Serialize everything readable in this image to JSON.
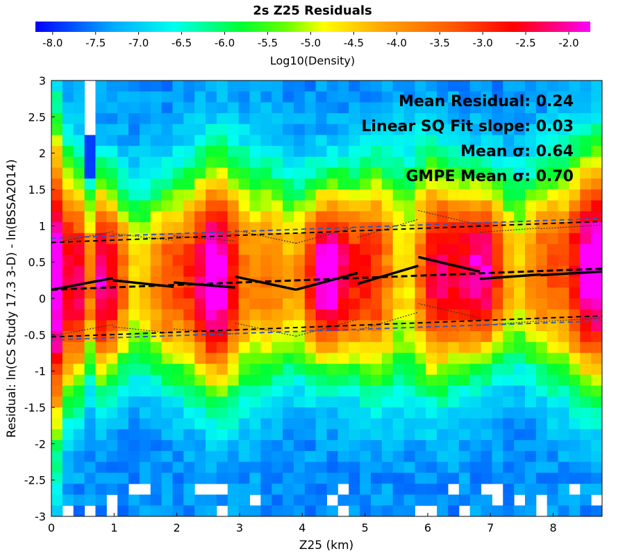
{
  "chart_data": {
    "type": "heatmap",
    "title": "2s Z25 Residuals",
    "colorbar": {
      "label": "Log10(Density)",
      "range": [
        -8.2,
        -1.75
      ],
      "ticks": [
        "-8.0",
        "-7.5",
        "-7.0",
        "-6.5",
        "-6.0",
        "-5.5",
        "-5.0",
        "-4.5",
        "-4.0",
        "-3.5",
        "-3.0",
        "-2.5",
        "-2.0"
      ],
      "palette": [
        "#0000ff",
        "#00e5ff",
        "#00ff00",
        "#ffff00",
        "#ff8c00",
        "#ff0000",
        "#ff00ff"
      ]
    },
    "xlabel": "Z25 (km)",
    "ylabel": "Residual: ln(CS Study 17.3 3-D) - ln(BSSA2014)",
    "xlim": [
      0,
      8.78
    ],
    "ylim": [
      -3,
      3
    ],
    "xticks": [
      "0",
      "1",
      "2",
      "3",
      "4",
      "5",
      "6",
      "7",
      "8"
    ],
    "yticks": [
      "-3",
      "-2.5",
      "-2",
      "-1.5",
      "-1",
      "-0.5",
      "0",
      "0.5",
      "1",
      "1.5",
      "2",
      "2.5",
      "3"
    ],
    "annotations": [
      "Mean Residual: 0.24",
      "Linear SQ Fit slope: 0.03",
      "Mean σ: 0.64",
      "GMPE Mean σ: 0.70"
    ],
    "series": [
      {
        "style": "binned-mean",
        "segments": [
          {
            "x": [
              0.0,
              0.98
            ],
            "y": [
              0.12,
              0.28
            ]
          },
          {
            "x": [
              0.98,
              1.95
            ],
            "y": [
              0.25,
              0.16
            ]
          },
          {
            "x": [
              1.95,
              2.93
            ],
            "y": [
              0.22,
              0.15
            ]
          },
          {
            "x": [
              2.93,
              3.9
            ],
            "y": [
              0.3,
              0.12
            ]
          },
          {
            "x": [
              3.9,
              4.88
            ],
            "y": [
              0.12,
              0.35
            ]
          },
          {
            "x": [
              4.88,
              5.85
            ],
            "y": [
              0.2,
              0.45
            ]
          },
          {
            "x": [
              5.85,
              6.83
            ],
            "y": [
              0.57,
              0.37
            ]
          },
          {
            "x": [
              6.83,
              7.8
            ],
            "y": [
              0.27,
              0.33
            ]
          },
          {
            "x": [
              7.8,
              8.78
            ],
            "y": [
              0.32,
              0.37
            ]
          }
        ]
      },
      {
        "style": "linear-fit",
        "x": [
          0,
          8.78
        ],
        "y": [
          0.12,
          0.41
        ]
      },
      {
        "style": "linear-fit-upper",
        "x": [
          0,
          8.78
        ],
        "y": [
          0.77,
          1.06
        ]
      },
      {
        "style": "linear-fit-lower",
        "x": [
          0,
          8.78
        ],
        "y": [
          -0.53,
          -0.24
        ]
      },
      {
        "style": "gmpe-upper",
        "x": [
          0,
          8.78
        ],
        "y": [
          0.83,
          1.1
        ]
      },
      {
        "style": "gmpe-lower",
        "x": [
          0,
          8.78
        ],
        "y": [
          -0.57,
          -0.31
        ]
      }
    ]
  }
}
